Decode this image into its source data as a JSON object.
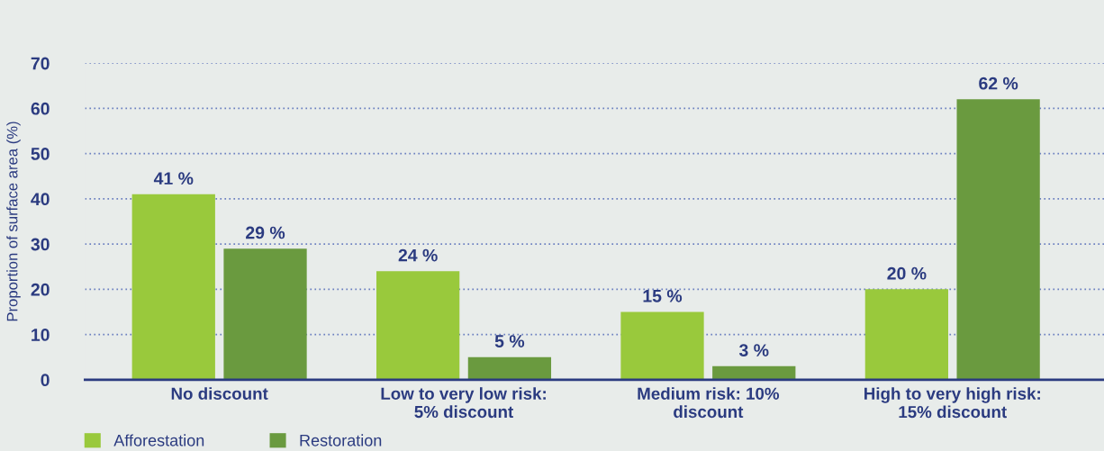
{
  "chart_data": {
    "type": "bar",
    "ylabel": "Proportion of surface area (%)",
    "categories": [
      "No discount",
      "Low to very low risk:\n5% discount",
      "Medium risk: 10%\ndiscount",
      "High to very high risk:\n15% discount"
    ],
    "series": [
      {
        "name": "Afforestation",
        "color": "#99c93c",
        "values": [
          41,
          24,
          15,
          20
        ],
        "value_labels": [
          "41 %",
          "24 %",
          "15 %",
          "20 %"
        ]
      },
      {
        "name": "Restoration",
        "color": "#6a9a3f",
        "values": [
          29,
          5,
          3,
          62
        ],
        "value_labels": [
          "29 %",
          "5 %",
          "3 %",
          "62 %"
        ]
      }
    ],
    "ylim": [
      0,
      70
    ],
    "yticks": [
      0,
      10,
      20,
      30,
      40,
      50,
      60,
      70
    ],
    "grid": "y",
    "legend": "bottom left"
  }
}
